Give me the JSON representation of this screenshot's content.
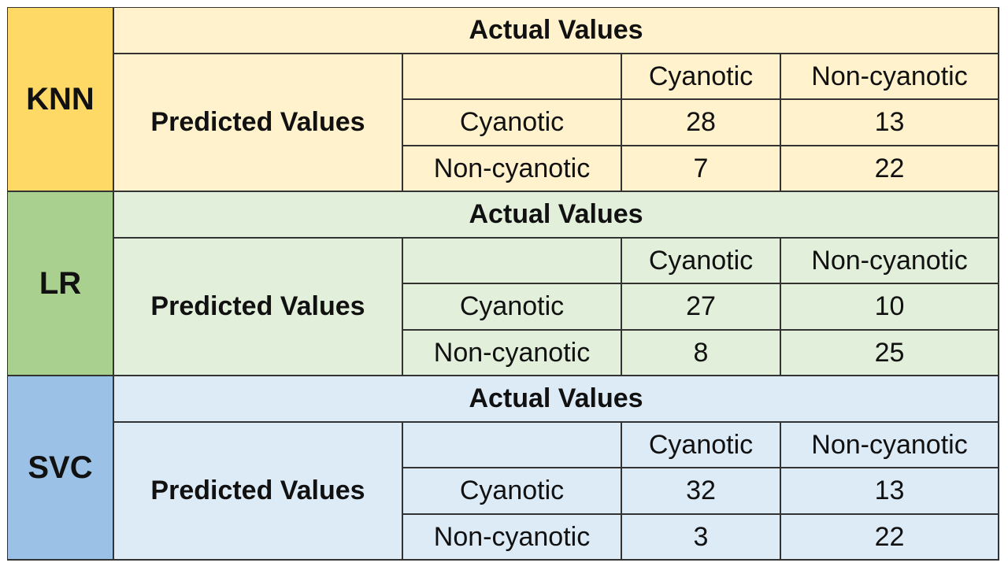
{
  "blocks": [
    {
      "model": "KNN",
      "actual_label": "Actual Values",
      "predicted_label": "Predicted Values",
      "columns": [
        "Cyanotic",
        "Non-cyanotic"
      ],
      "rows": [
        {
          "label": "Cyanotic",
          "values": [
            28,
            13
          ]
        },
        {
          "label": "Non-cyanotic",
          "values": [
            7,
            22
          ]
        }
      ]
    },
    {
      "model": "LR",
      "actual_label": "Actual Values",
      "predicted_label": "Predicted Values",
      "columns": [
        "Cyanotic",
        "Non-cyanotic"
      ],
      "rows": [
        {
          "label": "Cyanotic",
          "values": [
            27,
            10
          ]
        },
        {
          "label": "Non-cyanotic",
          "values": [
            8,
            25
          ]
        }
      ]
    },
    {
      "model": "SVC",
      "actual_label": "Actual Values",
      "predicted_label": "Predicted Values",
      "columns": [
        "Cyanotic",
        "Non-cyanotic"
      ],
      "rows": [
        {
          "label": "Cyanotic",
          "values": [
            32,
            13
          ]
        },
        {
          "label": "Non-cyanotic",
          "values": [
            3,
            22
          ]
        }
      ]
    }
  ]
}
